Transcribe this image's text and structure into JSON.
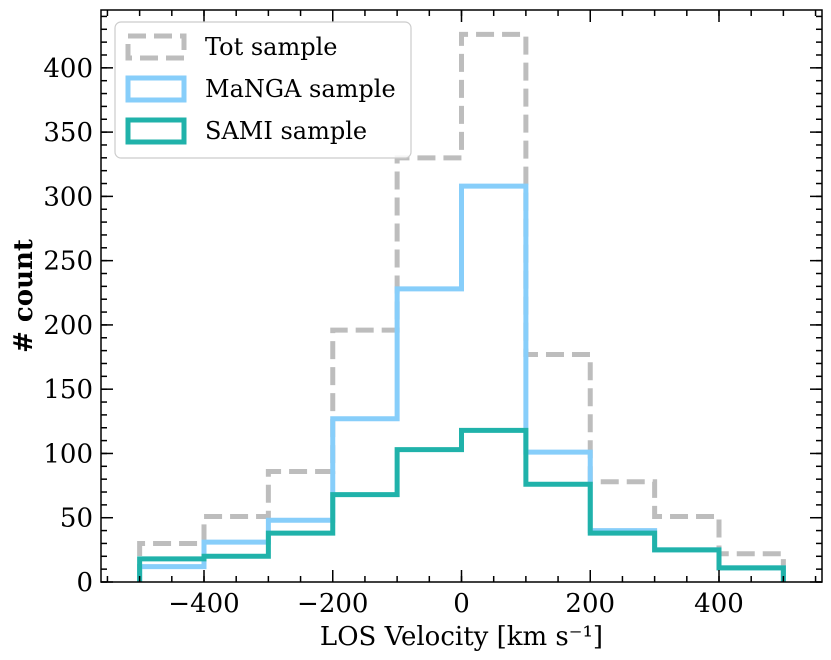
{
  "chart_data": {
    "type": "histogram",
    "bin_edges": [
      -500,
      -400,
      -300,
      -200,
      -100,
      0,
      100,
      200,
      300,
      400,
      500
    ],
    "series": [
      {
        "name": "Tot sample",
        "values": [
          30,
          51,
          86,
          196,
          330,
          426,
          177,
          78,
          51,
          22
        ],
        "color": "#bdbdbd",
        "style": "dashed"
      },
      {
        "name": "MaNGA sample",
        "values": [
          12,
          31,
          48,
          127,
          228,
          308,
          101,
          40,
          25,
          11
        ],
        "color": "#87cefa",
        "style": "solid"
      },
      {
        "name": "SAMI sample",
        "values": [
          18,
          20,
          38,
          68,
          103,
          118,
          76,
          38,
          25,
          11
        ],
        "color": "#20b2aa",
        "style": "solid"
      }
    ],
    "xlabel": "LOS Velocity [km s⁻¹]",
    "ylabel": "# count",
    "xlim": [
      -560,
      560
    ],
    "ylim": [
      0,
      445
    ],
    "xticks": [
      -400,
      -200,
      0,
      200,
      400
    ],
    "xtick_labels": [
      "−400",
      "−200",
      "0",
      "200",
      "400"
    ],
    "yticks": [
      0,
      50,
      100,
      150,
      200,
      250,
      300,
      350,
      400
    ],
    "ytick_labels": [
      "0",
      "50",
      "100",
      "150",
      "200",
      "250",
      "300",
      "350",
      "400"
    ],
    "x_minor_step": 50,
    "y_minor_step": 10,
    "legend_position": "top-left",
    "grid": false
  }
}
